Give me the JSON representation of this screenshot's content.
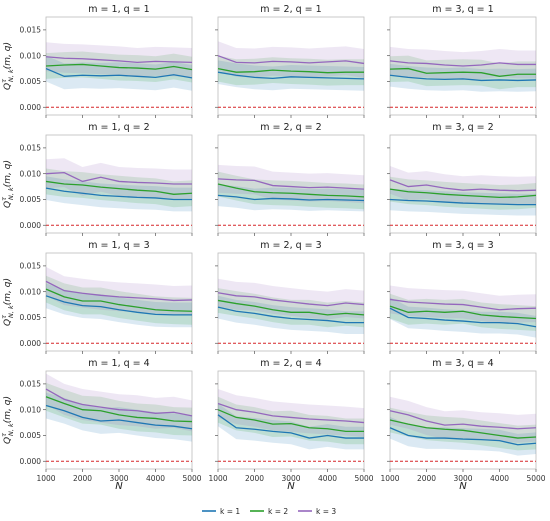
{
  "chart_data": {
    "type": "line",
    "xlabel": "N",
    "ylabel_parts": {
      "base": "Q",
      "sup": "τ",
      "sub": "N, k",
      "tail": "(m, q)"
    },
    "x": [
      1000,
      1500,
      2000,
      2500,
      3000,
      3500,
      4000,
      4500,
      5000
    ],
    "xticks": [
      "1000",
      "2000",
      "3000",
      "4000",
      "5000"
    ],
    "yticks": [
      "0.000",
      "0.005",
      "0.010",
      "0.015"
    ],
    "ylim": [
      -0.0015,
      0.0175
    ],
    "xlim": [
      1000,
      5000
    ],
    "reference_line": 0.0,
    "colors": {
      "k1": "#1f77b4",
      "k2": "#2ca02c",
      "k3": "#9467bd",
      "ref": "#d62728"
    },
    "legend": [
      "k = 1",
      "k = 2",
      "k = 3"
    ],
    "panels": [
      {
        "title": "m = 1, q = 1",
        "series": [
          {
            "values": [
              0.0075,
              0.006,
              0.0062,
              0.0061,
              0.0062,
              0.006,
              0.0058,
              0.0063,
              0.0057
            ],
            "band": 0.0025
          },
          {
            "values": [
              0.008,
              0.0082,
              0.0083,
              0.008,
              0.0077,
              0.0076,
              0.0074,
              0.0079,
              0.0073
            ],
            "band": 0.0025
          },
          {
            "values": [
              0.0098,
              0.0095,
              0.0094,
              0.0092,
              0.009,
              0.0087,
              0.0089,
              0.0088,
              0.0087
            ],
            "band": 0.0028
          }
        ]
      },
      {
        "title": "m = 2, q = 1",
        "series": [
          {
            "values": [
              0.0068,
              0.0062,
              0.0058,
              0.0056,
              0.0059,
              0.0058,
              0.0057,
              0.0056,
              0.0055
            ],
            "band": 0.0023
          },
          {
            "values": [
              0.0075,
              0.0068,
              0.0069,
              0.0072,
              0.007,
              0.0069,
              0.0067,
              0.0068,
              0.0068
            ],
            "band": 0.0025
          },
          {
            "values": [
              0.01,
              0.0087,
              0.0086,
              0.0089,
              0.0088,
              0.0086,
              0.0088,
              0.009,
              0.0085
            ],
            "band": 0.0028
          }
        ]
      },
      {
        "title": "m = 3, q = 1",
        "series": [
          {
            "values": [
              0.0062,
              0.0058,
              0.0055,
              0.0054,
              0.0055,
              0.0052,
              0.0053,
              0.0052,
              0.0053
            ],
            "band": 0.0022
          },
          {
            "values": [
              0.0074,
              0.0075,
              0.0066,
              0.0067,
              0.0068,
              0.0067,
              0.006,
              0.0064,
              0.0064
            ],
            "band": 0.0025
          },
          {
            "values": [
              0.009,
              0.0086,
              0.0085,
              0.0082,
              0.008,
              0.0082,
              0.0086,
              0.0083,
              0.0083
            ],
            "band": 0.0027
          }
        ]
      },
      {
        "title": "m = 1, q = 2",
        "series": [
          {
            "values": [
              0.0072,
              0.0066,
              0.0062,
              0.0058,
              0.0056,
              0.0054,
              0.0053,
              0.005,
              0.005
            ],
            "band": 0.0023
          },
          {
            "values": [
              0.0085,
              0.008,
              0.0078,
              0.0074,
              0.0071,
              0.0068,
              0.0066,
              0.006,
              0.0062
            ],
            "band": 0.0025
          },
          {
            "values": [
              0.01,
              0.0102,
              0.0085,
              0.0093,
              0.0085,
              0.0083,
              0.0082,
              0.008,
              0.008
            ],
            "band": 0.0028
          }
        ]
      },
      {
        "title": "m = 2, q = 2",
        "series": [
          {
            "values": [
              0.0058,
              0.0055,
              0.005,
              0.0052,
              0.0051,
              0.0049,
              0.005,
              0.0049,
              0.0048
            ],
            "band": 0.0021
          },
          {
            "values": [
              0.008,
              0.0072,
              0.0065,
              0.0063,
              0.0062,
              0.006,
              0.0058,
              0.0057,
              0.0055
            ],
            "band": 0.0024
          },
          {
            "values": [
              0.009,
              0.0088,
              0.0087,
              0.0077,
              0.0075,
              0.0073,
              0.0074,
              0.0072,
              0.007
            ],
            "band": 0.0027
          }
        ]
      },
      {
        "title": "m = 3, q = 2",
        "series": [
          {
            "values": [
              0.005,
              0.0048,
              0.0047,
              0.0045,
              0.0043,
              0.0042,
              0.0041,
              0.004,
              0.004
            ],
            "band": 0.0021
          },
          {
            "values": [
              0.007,
              0.0065,
              0.0063,
              0.006,
              0.0058,
              0.0056,
              0.0054,
              0.0055,
              0.0058
            ],
            "band": 0.0024
          },
          {
            "values": [
              0.0088,
              0.0075,
              0.0078,
              0.0072,
              0.0068,
              0.007,
              0.0068,
              0.0067,
              0.0068
            ],
            "band": 0.0027
          }
        ]
      },
      {
        "title": "m = 1, q = 3",
        "series": [
          {
            "values": [
              0.0092,
              0.008,
              0.0073,
              0.0071,
              0.0065,
              0.006,
              0.0056,
              0.0055,
              0.0055
            ],
            "band": 0.0024
          },
          {
            "values": [
              0.0105,
              0.009,
              0.0082,
              0.0082,
              0.0075,
              0.007,
              0.0065,
              0.0063,
              0.0062
            ],
            "band": 0.0026
          },
          {
            "values": [
              0.012,
              0.0102,
              0.0097,
              0.0093,
              0.009,
              0.0088,
              0.0086,
              0.0083,
              0.0084
            ],
            "band": 0.0028
          }
        ]
      },
      {
        "title": "m = 2, q = 3",
        "series": [
          {
            "values": [
              0.007,
              0.0062,
              0.0058,
              0.0052,
              0.0048,
              0.0046,
              0.0044,
              0.004,
              0.004
            ],
            "band": 0.0022
          },
          {
            "values": [
              0.0083,
              0.0077,
              0.0072,
              0.0065,
              0.006,
              0.006,
              0.0055,
              0.0058,
              0.0055
            ],
            "band": 0.0024
          },
          {
            "values": [
              0.0098,
              0.0092,
              0.009,
              0.0084,
              0.008,
              0.0076,
              0.0073,
              0.0078,
              0.0075
            ],
            "band": 0.0027
          }
        ]
      },
      {
        "title": "m = 3, q = 3",
        "series": [
          {
            "values": [
              0.0068,
              0.005,
              0.0048,
              0.0045,
              0.0043,
              0.004,
              0.004,
              0.0038,
              0.0032
            ],
            "band": 0.0021
          },
          {
            "values": [
              0.0072,
              0.006,
              0.0062,
              0.006,
              0.0062,
              0.0055,
              0.0052,
              0.005,
              0.0048
            ],
            "band": 0.0024
          },
          {
            "values": [
              0.0085,
              0.008,
              0.0078,
              0.0076,
              0.0075,
              0.007,
              0.0065,
              0.0067,
              0.0068
            ],
            "band": 0.0027
          }
        ]
      },
      {
        "title": "m = 1, q = 4",
        "series": [
          {
            "values": [
              0.0108,
              0.0098,
              0.0085,
              0.0078,
              0.008,
              0.0075,
              0.007,
              0.0068,
              0.0063
            ],
            "band": 0.0025
          },
          {
            "values": [
              0.0125,
              0.0112,
              0.01,
              0.0098,
              0.009,
              0.0085,
              0.0083,
              0.0078,
              0.0077
            ],
            "band": 0.0027
          },
          {
            "values": [
              0.014,
              0.012,
              0.011,
              0.0105,
              0.01,
              0.0098,
              0.0093,
              0.0095,
              0.0088
            ],
            "band": 0.003
          }
        ]
      },
      {
        "title": "m = 2, q = 4",
        "series": [
          {
            "values": [
              0.009,
              0.0065,
              0.0062,
              0.0058,
              0.0055,
              0.0045,
              0.005,
              0.0045,
              0.0045
            ],
            "band": 0.0022
          },
          {
            "values": [
              0.01,
              0.0085,
              0.008,
              0.0072,
              0.0073,
              0.0065,
              0.0063,
              0.0058,
              0.0058
            ],
            "band": 0.0025
          },
          {
            "values": [
              0.0112,
              0.01,
              0.0095,
              0.0088,
              0.0085,
              0.0082,
              0.008,
              0.0078,
              0.0075
            ],
            "band": 0.0028
          }
        ]
      },
      {
        "title": "m = 3, q = 4",
        "series": [
          {
            "values": [
              0.0065,
              0.005,
              0.0045,
              0.0045,
              0.0043,
              0.0042,
              0.004,
              0.0032,
              0.0035
            ],
            "band": 0.0021
          },
          {
            "values": [
              0.008,
              0.0072,
              0.0065,
              0.0062,
              0.006,
              0.0055,
              0.005,
              0.0045,
              0.0047
            ],
            "band": 0.0024
          },
          {
            "values": [
              0.0098,
              0.009,
              0.0078,
              0.007,
              0.0072,
              0.0068,
              0.0066,
              0.0063,
              0.0065
            ],
            "band": 0.0027
          }
        ]
      }
    ]
  }
}
